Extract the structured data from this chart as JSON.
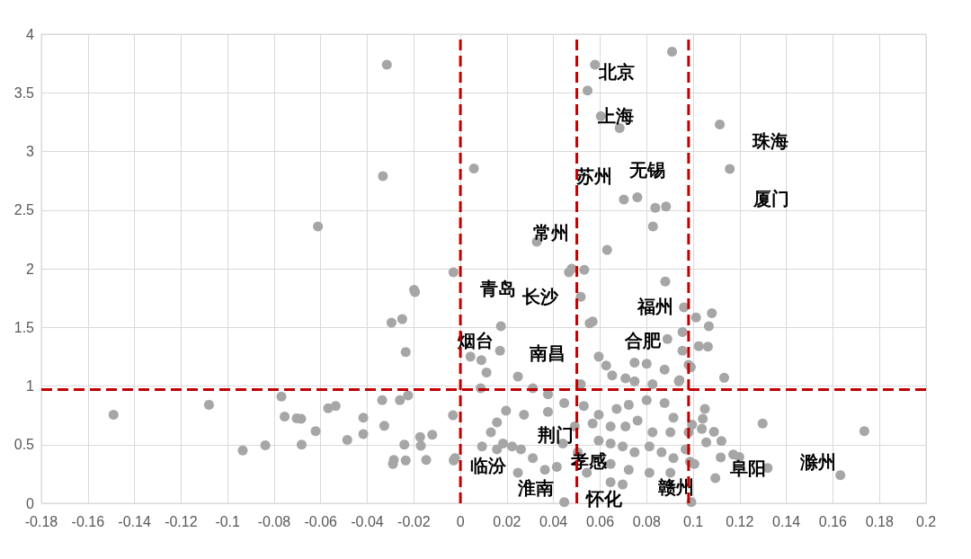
{
  "chart_data": {
    "type": "scatter",
    "xlim": [
      -0.18,
      0.2
    ],
    "xticks": [
      -0.18,
      -0.16,
      -0.14,
      -0.12,
      -0.1,
      -0.08,
      -0.06,
      -0.04,
      -0.02,
      0,
      0.02,
      0.04,
      0.06,
      0.08,
      0.1,
      0.12,
      0.14,
      0.16,
      0.18,
      0.2
    ],
    "ylim": [
      0,
      4
    ],
    "yticks": [
      0,
      0.5,
      1,
      1.5,
      2,
      2.5,
      3,
      3.5,
      4
    ],
    "grid": true,
    "marker": "circle",
    "series": [
      {
        "color": "#a6a6a6",
        "x": [
          -0.0316,
          -0.0333,
          -0.0612,
          -0.003,
          -0.0199,
          -0.0195,
          -0.149,
          -0.108,
          -0.0769,
          -0.0755,
          -0.0703,
          -0.0684,
          -0.0935,
          -0.0838,
          -0.0682,
          -0.0622,
          -0.0568,
          -0.0536,
          -0.0486,
          -0.0417,
          -0.0417,
          -0.0336,
          -0.0327,
          -0.0296,
          -0.025,
          -0.0235,
          -0.026,
          -0.0225,
          -0.0286,
          -0.029,
          -0.0241,
          -0.0235,
          -0.0173,
          -0.017,
          -0.0121,
          -0.0147,
          -0.0032,
          -0.0029,
          0.0909,
          0.0578,
          0.0546,
          0.0603,
          0.0684,
          0.0058,
          0.0702,
          0.076,
          0.0837,
          0.0883,
          0.0827,
          0.063,
          0.0328,
          0.0466,
          0.0478,
          0.0532,
          0.088,
          0.0517,
          0.0174,
          0.0568,
          0.0555,
          0.0594,
          0.0626,
          0.0652,
          0.0748,
          0.08,
          0.0709,
          0.0748,
          0.0877,
          0.0941,
          0.0825,
          0.0247,
          0.0112,
          0.0087,
          0.0311,
          0.0376,
          0.0517,
          0.0954,
          0.0889,
          0.098,
          0.0954,
          0.0196,
          0.0157,
          0.0131,
          0.0273,
          0.0376,
          0.0446,
          0.053,
          0.0594,
          0.0671,
          0.0723,
          0.08,
          0.0877,
          0.0915,
          0.0709,
          0.0645,
          0.0568,
          0.0491,
          0.0761,
          0.0825,
          0.0902,
          0.098,
          0.0183,
          0.0222,
          0.026,
          0.0157,
          0.0311,
          0.044,
          0.0504,
          0.0594,
          0.0645,
          0.0697,
          0.0748,
          0.0812,
          0.0864,
          0.0915,
          0.0967,
          0.1005,
          0.0645,
          0.0723,
          0.0812,
          0.0902,
          0.0414,
          0.0363,
          0.0247,
          0.0093,
          -0.0023,
          0.0446,
          0.0992,
          0.0645,
          0.0697,
          0.0543,
          0.096,
          0.1012,
          0.108,
          0.1067,
          0.1024,
          0.1063,
          0.099,
          0.1133,
          0.0938,
          0.105,
          0.1041,
          0.0995,
          0.1037,
          0.1089,
          0.1056,
          0.1121,
          0.1298,
          0.1735,
          0.1118,
          0.1172,
          0.1198,
          0.132,
          0.1632,
          0.1095,
          0.0986,
          0.1114,
          0.1157,
          0.009,
          0.017,
          0.0043
        ],
        "values": [
          3.74,
          2.79,
          2.36,
          1.97,
          1.82,
          1.8,
          0.755,
          0.84,
          0.91,
          0.74,
          0.725,
          0.72,
          0.45,
          0.495,
          0.5,
          0.615,
          0.81,
          0.83,
          0.54,
          0.73,
          0.59,
          0.88,
          0.66,
          1.54,
          1.57,
          1.29,
          0.88,
          0.92,
          0.37,
          0.335,
          0.5,
          0.365,
          0.565,
          0.49,
          0.585,
          0.37,
          0.75,
          0.365,
          3.85,
          3.74,
          3.52,
          3.3,
          3.2,
          2.855,
          2.59,
          2.61,
          2.52,
          2.53,
          2.36,
          2.16,
          2.23,
          1.97,
          2.0,
          1.99,
          1.89,
          1.76,
          1.51,
          1.55,
          1.535,
          1.25,
          1.175,
          1.09,
          1.2,
          1.19,
          1.065,
          1.04,
          1.14,
          1.05,
          1.015,
          1.08,
          1.115,
          0.98,
          0.98,
          0.93,
          1.015,
          1.46,
          1.4,
          1.18,
          1.3,
          0.79,
          0.69,
          0.605,
          0.755,
          0.78,
          0.855,
          0.83,
          0.755,
          0.805,
          0.84,
          0.88,
          0.855,
          0.73,
          0.655,
          0.655,
          0.68,
          0.655,
          0.705,
          0.605,
          0.605,
          0.605,
          0.51,
          0.485,
          0.46,
          0.46,
          0.385,
          0.51,
          0.435,
          0.535,
          0.51,
          0.485,
          0.435,
          0.485,
          0.435,
          0.385,
          0.46,
          0.335,
          0.335,
          0.285,
          0.26,
          0.26,
          0.31,
          0.285,
          0.26,
          0.485,
          0.385,
          0.01,
          0.01,
          0.18,
          0.16,
          0.26,
          1.67,
          1.585,
          1.62,
          1.51,
          1.34,
          1.335,
          1.16,
          1.07,
          1.04,
          0.805,
          0.72,
          0.67,
          0.635,
          0.61,
          0.52,
          0.53,
          0.68,
          0.615,
          0.39,
          0.415,
          0.395,
          0.3,
          0.24,
          0.215,
          0.355,
          3.23,
          2.85,
          1.22,
          1.3,
          1.25
        ]
      }
    ],
    "ref_lines": [
      {
        "axis": "x",
        "value": 0,
        "color": "#c00000",
        "line_style": "dashed"
      },
      {
        "axis": "x",
        "value": 0.05,
        "color": "#c00000",
        "line_style": "dashed"
      },
      {
        "axis": "x",
        "value": 0.098,
        "color": "#c00000",
        "line_style": "dashed"
      },
      {
        "axis": "y",
        "value": 0.97,
        "color": "#c00000",
        "line_style": "dashed"
      }
    ],
    "annotations": [
      "北京",
      "上海",
      "苏州",
      "无锡",
      "珠海",
      "厦门",
      "常州",
      "青岛",
      "长沙",
      "福州",
      "烟台",
      "南昌",
      "合肥",
      "荆门",
      "孝感",
      "临汾",
      "淮南",
      "怀化",
      "赣州",
      "阜阳",
      "滁州"
    ]
  }
}
